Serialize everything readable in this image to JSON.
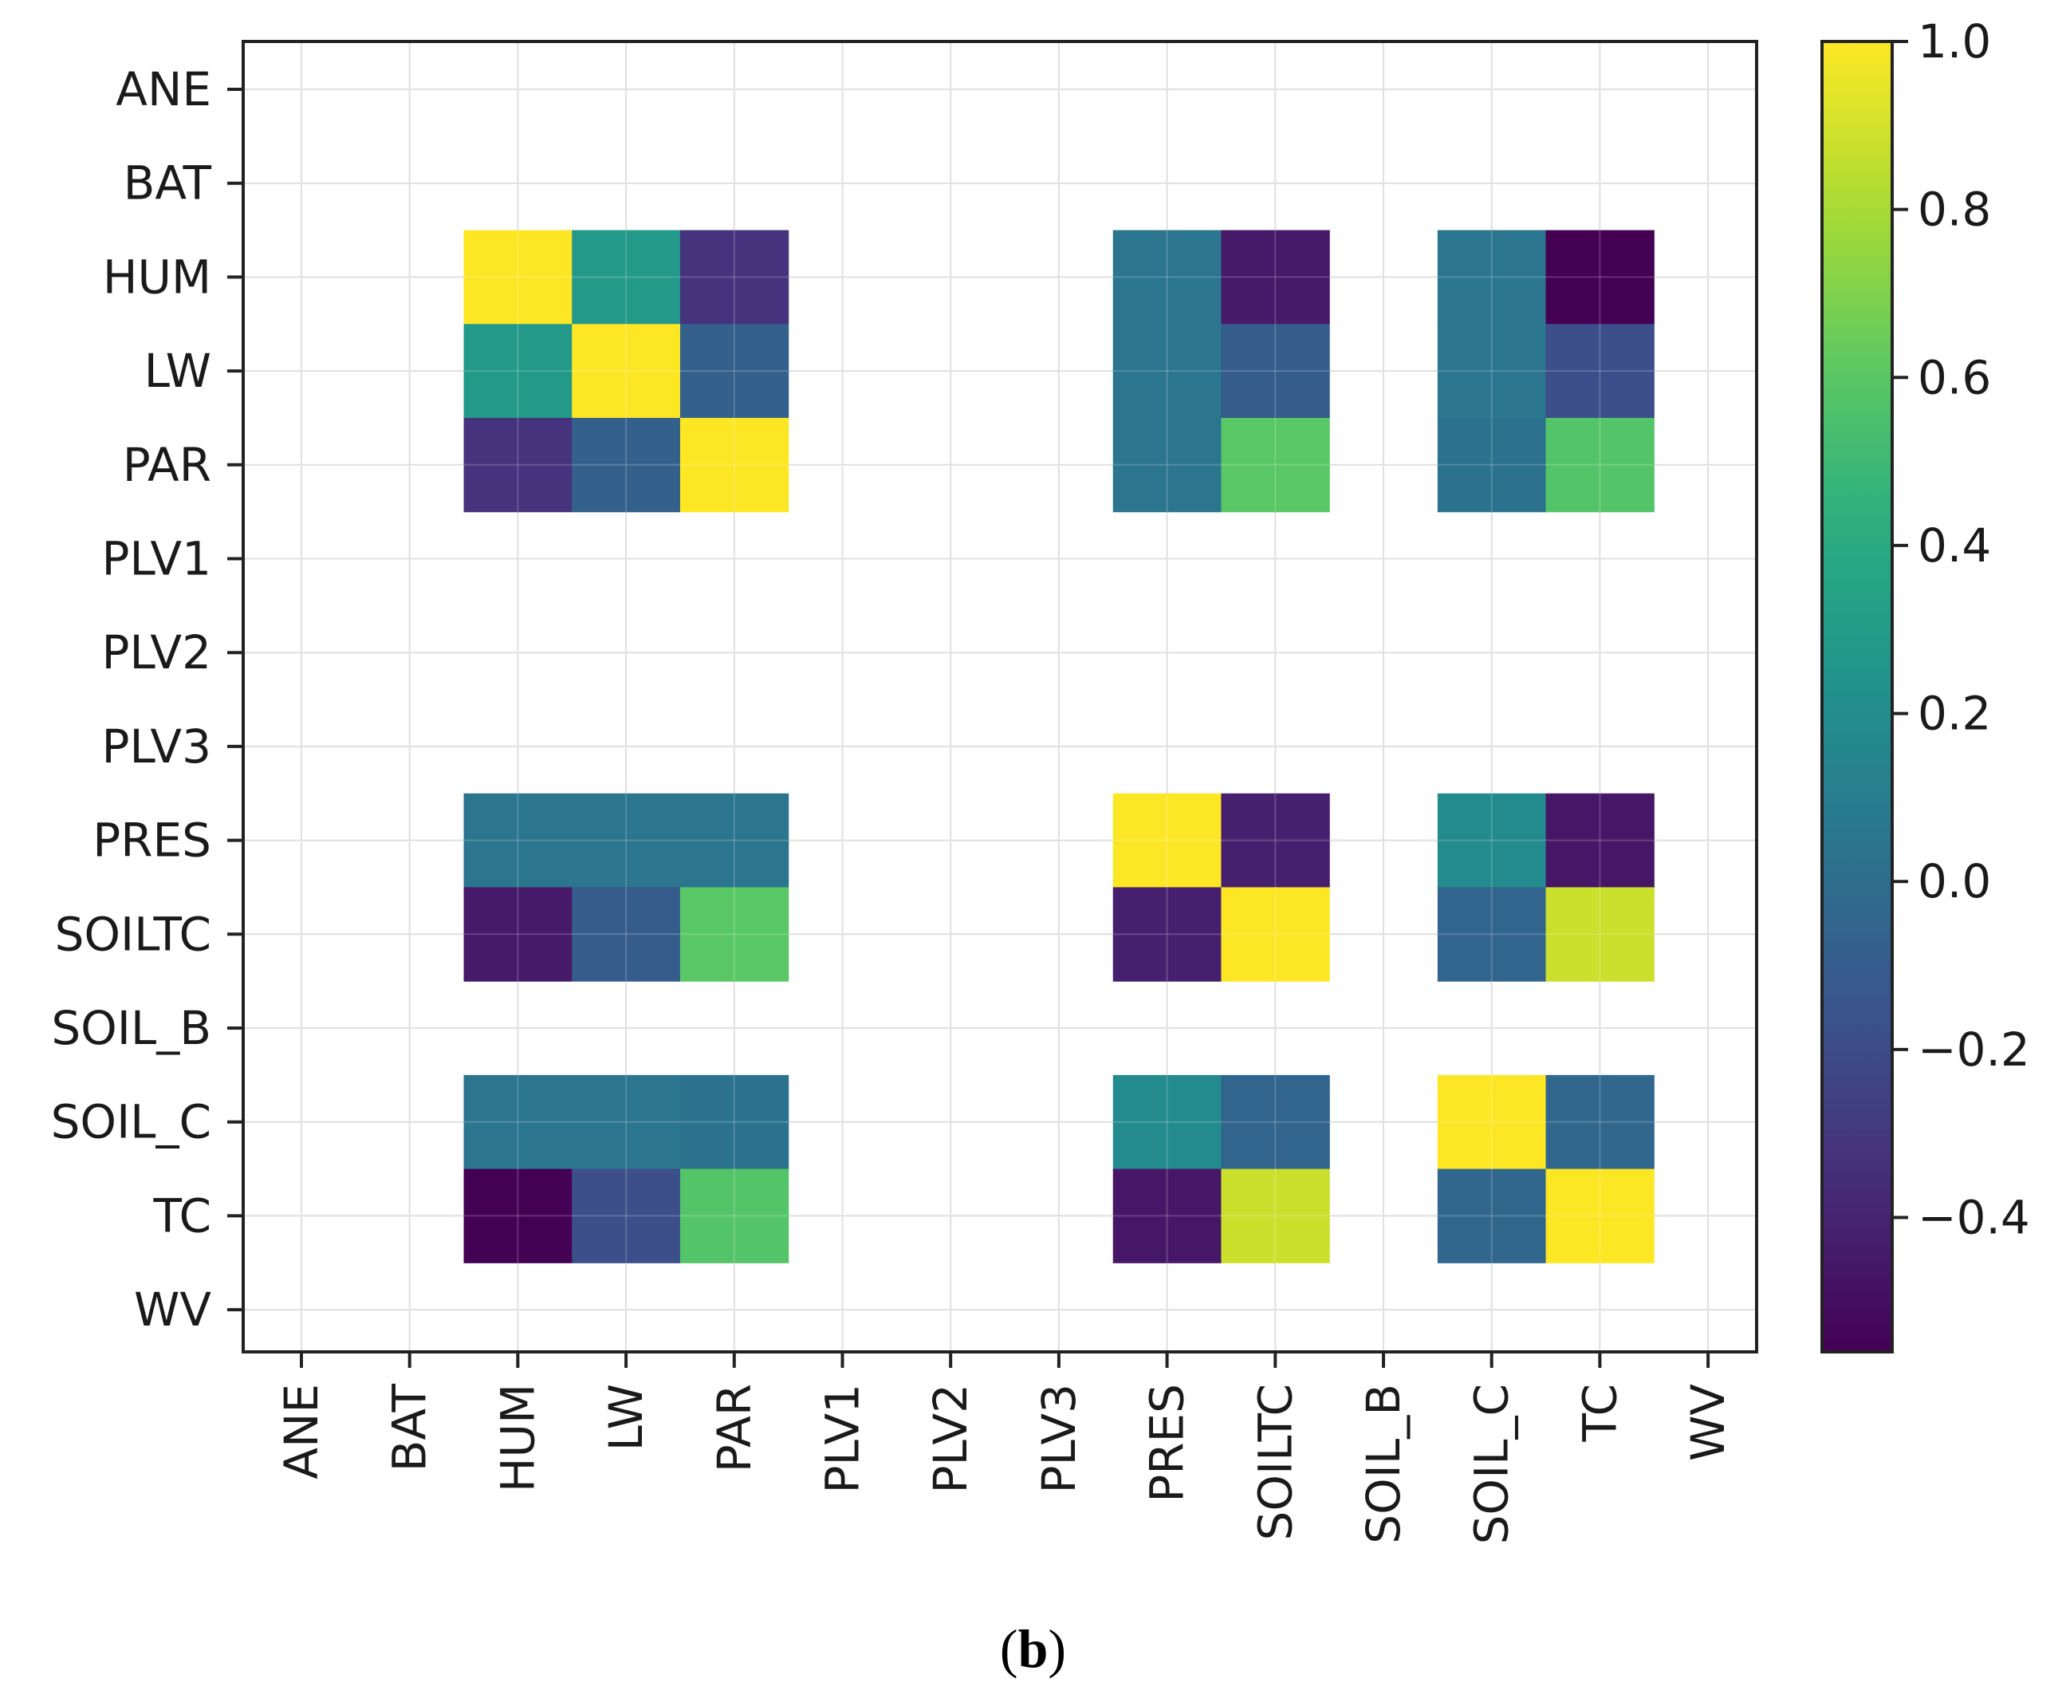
{
  "chart_data": {
    "type": "heatmap",
    "title": "",
    "xlabel": "",
    "ylabel": "",
    "labels": [
      "ANE",
      "BAT",
      "HUM",
      "LW",
      "PAR",
      "PLV1",
      "PLV2",
      "PLV3",
      "PRES",
      "SOILTC",
      "SOIL_B",
      "SOIL_C",
      "TC",
      "WV"
    ],
    "matrix": [
      [
        null,
        null,
        null,
        null,
        null,
        null,
        null,
        null,
        null,
        null,
        null,
        null,
        null,
        null
      ],
      [
        null,
        null,
        null,
        null,
        null,
        null,
        null,
        null,
        null,
        null,
        null,
        null,
        null,
        null
      ],
      [
        null,
        null,
        1.0,
        0.28,
        -0.33,
        null,
        null,
        null,
        0.05,
        -0.45,
        null,
        0.05,
        -0.56,
        null
      ],
      [
        null,
        null,
        0.28,
        1.0,
        -0.08,
        null,
        null,
        null,
        0.05,
        -0.1,
        null,
        0.05,
        -0.18,
        null
      ],
      [
        null,
        null,
        -0.33,
        -0.08,
        1.0,
        null,
        null,
        null,
        0.05,
        0.6,
        null,
        0.03,
        0.58,
        null
      ],
      [
        null,
        null,
        null,
        null,
        null,
        null,
        null,
        null,
        null,
        null,
        null,
        null,
        null,
        null
      ],
      [
        null,
        null,
        null,
        null,
        null,
        null,
        null,
        null,
        null,
        null,
        null,
        null,
        null,
        null
      ],
      [
        null,
        null,
        null,
        null,
        null,
        null,
        null,
        null,
        null,
        null,
        null,
        null,
        null,
        null
      ],
      [
        null,
        null,
        0.05,
        0.05,
        0.05,
        null,
        null,
        null,
        1.0,
        -0.42,
        null,
        0.18,
        -0.46,
        null
      ],
      [
        null,
        null,
        -0.45,
        -0.1,
        0.6,
        null,
        null,
        null,
        -0.42,
        1.0,
        null,
        -0.05,
        0.88,
        null
      ],
      [
        null,
        null,
        null,
        null,
        null,
        null,
        null,
        null,
        null,
        null,
        null,
        null,
        null,
        null
      ],
      [
        null,
        null,
        0.05,
        0.05,
        0.03,
        null,
        null,
        null,
        0.18,
        -0.05,
        null,
        1.0,
        -0.04,
        null
      ],
      [
        null,
        null,
        -0.56,
        -0.18,
        0.58,
        null,
        null,
        null,
        -0.46,
        0.88,
        null,
        -0.04,
        1.0,
        null
      ],
      [
        null,
        null,
        null,
        null,
        null,
        null,
        null,
        null,
        null,
        null,
        null,
        null,
        null,
        null
      ]
    ],
    "colormap": "viridis",
    "vmin": -0.56,
    "vmax": 1.0,
    "colorbar_ticks": [
      1.0,
      0.8,
      0.6,
      0.4,
      0.2,
      0.0,
      -0.2,
      -0.4
    ],
    "colorbar_tick_labels": [
      "1.0",
      "0.8",
      "0.6",
      "0.4",
      "0.2",
      "0.0",
      "−0.2",
      "−0.4"
    ],
    "grid": true
  },
  "caption": {
    "open": "(",
    "letter": "b",
    "close": ")"
  }
}
